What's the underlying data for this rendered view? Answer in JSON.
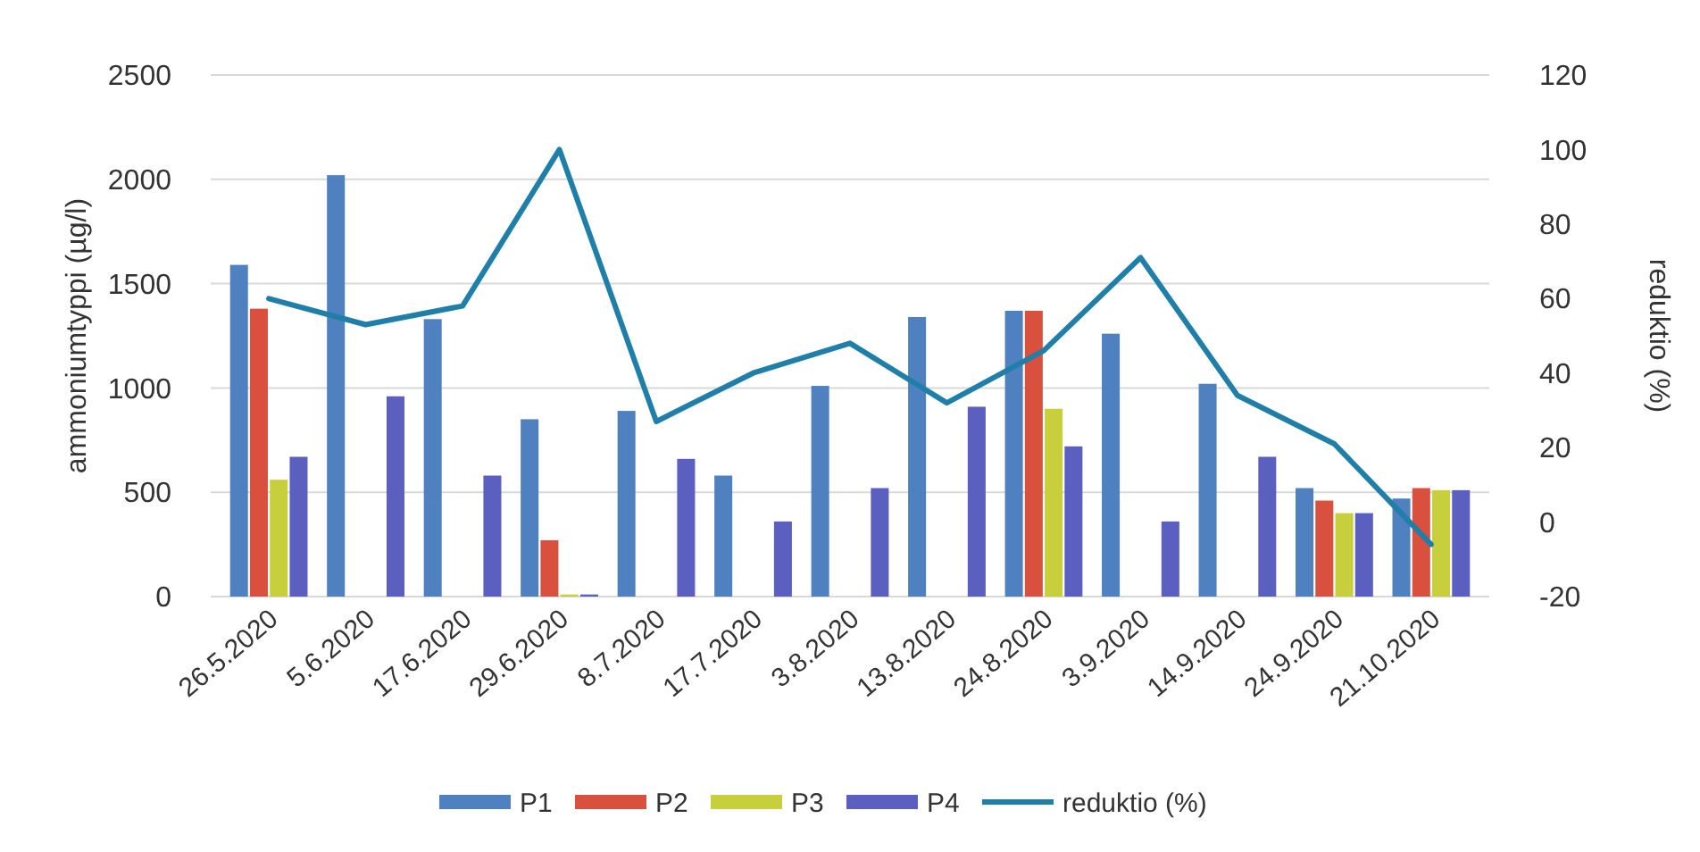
{
  "chart_data": {
    "type": "bar",
    "ylabel": "ammoniumtyppi (µg/l)",
    "y2label": "reduktio (%)",
    "categories": [
      "26.5.2020",
      "5.6.2020",
      "17.6.2020",
      "29.6.2020",
      "8.7.2020",
      "17.7.2020",
      "3.8.2020",
      "13.8.2020",
      "24.8.2020",
      "3.9.2020",
      "14.9.2020",
      "24.9.2020",
      "21.10.2020"
    ],
    "series": [
      {
        "name": "P1",
        "color": "#4f80c0",
        "values": [
          1590,
          2020,
          1330,
          850,
          890,
          580,
          1010,
          1340,
          1370,
          1260,
          1020,
          520,
          470
        ]
      },
      {
        "name": "P2",
        "color": "#d9503f",
        "values": [
          1380,
          null,
          null,
          270,
          null,
          null,
          null,
          null,
          1370,
          null,
          null,
          460,
          520
        ]
      },
      {
        "name": "P3",
        "color": "#c8cf3c",
        "values": [
          560,
          null,
          null,
          10,
          null,
          null,
          null,
          null,
          900,
          null,
          null,
          400,
          510
        ]
      },
      {
        "name": "P4",
        "color": "#5a5fc0",
        "values": [
          670,
          960,
          580,
          10,
          660,
          360,
          520,
          910,
          720,
          360,
          670,
          400,
          510
        ]
      },
      {
        "name": "reduktio (%)",
        "type": "line",
        "axis": "y2",
        "color": "#1f7fa8",
        "values": [
          60,
          53,
          58,
          100,
          27,
          40,
          48,
          32,
          46,
          71,
          34,
          21,
          -6
        ]
      }
    ],
    "ylim": [
      0,
      2500
    ],
    "yticks": [
      0,
      500,
      1000,
      1500,
      2000,
      2500
    ],
    "y2lim": [
      -20,
      120
    ],
    "y2ticks": [
      -20,
      0,
      20,
      40,
      60,
      80,
      100,
      120
    ],
    "grid": "y",
    "legend": "bottom"
  }
}
